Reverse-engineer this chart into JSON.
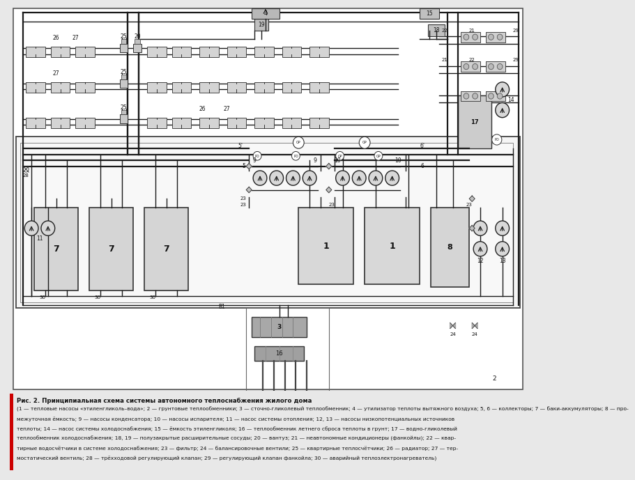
{
  "title": "Рис. 2. Принципиальная схема системы автономного теплоснабжения жилого дома",
  "caption": "(1 — тепловые насосы «этиленгликоль–вода»; 2 — грунтовые теплообменники; 3 — сточно-гликолевый теплообменник; 4 — утилизатор теплоты вытяжного воздуха; 5, 6 — коллекторы; 7 — баки-аккумуляторы; 8 — промежуточная е́мкость; 9 — насосы конденсатора; 10 — насосы испарителя; 11 — насос системы отопления; 12, 13 — насосы низкопотенциальных источников теплоты; 14 — насос системы холодоснабжения; 15 — е́мкость этиленгликоля; 16 — теплообменник летнего сброса теплоты в грунт; 17 — водно-гликолевый теплообменник холодоснабжения; 18, 19 — полузакрытые расширительные сосуды; 20 — вантуз; 21 — неавтономные кондиционеры (фанкойлы); 22 — квартирные водосче́тчики в системе холодоснабжения; 23 — фильтр; 24 — балансировочные вентили; 25 — квартирные теплосче́тчики; 26 — радиатор; 27 — термостатический вентиль; 28 — тре́хходовой регулирующий клапан; 29 — регулирующий клапан фанкойла; 30 — аварийный теплоэлектронагреватель)",
  "bg_color": "#e8e8e8",
  "diagram_bg": "#ffffff",
  "line_color": "#1a1a1a",
  "component_fill": "#c8c8c8",
  "component_edge": "#333333",
  "text_color": "#111111",
  "fig_width": 7.46,
  "fig_height": 6.76
}
